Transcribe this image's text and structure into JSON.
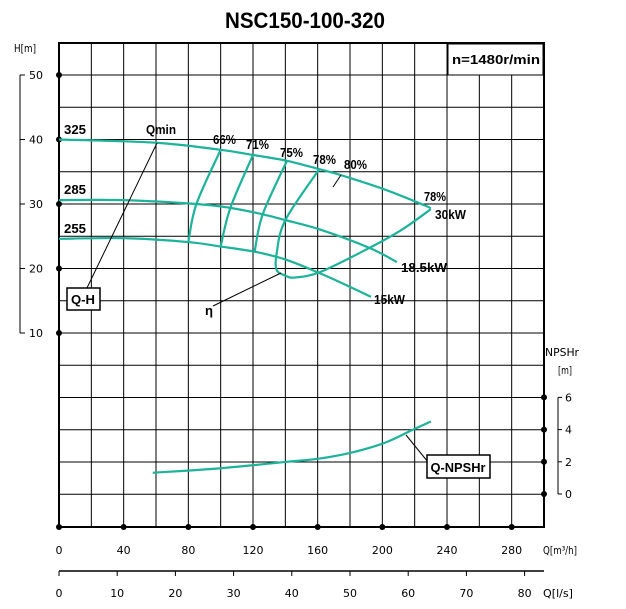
{
  "chart_data": {
    "type": "line",
    "title": "NSC150-100-320",
    "speed_label": "n=1480r/min",
    "x_axis": {
      "label": "Q[m³/h]",
      "range": [
        0,
        300
      ],
      "ticks": [
        0,
        40,
        80,
        120,
        160,
        200,
        240,
        280
      ],
      "grid_step": 20
    },
    "x2_axis": {
      "label": "Q[l/s]",
      "ticks": [
        0,
        10,
        20,
        30,
        40,
        50,
        60,
        70,
        80
      ]
    },
    "y_axis": {
      "label": "H[m]",
      "range": [
        -20,
        55
      ],
      "ticks": [
        10,
        20,
        30,
        40,
        50
      ],
      "grid_step": 5
    },
    "y2_axis": {
      "label_line1": "NPSHr",
      "label_line2": "[m]",
      "ticks": [
        0,
        2,
        4,
        6
      ]
    },
    "grid": true,
    "color": "#1db39a",
    "head_curves": [
      {
        "name": "325",
        "power_label": "30kW",
        "points": [
          [
            0,
            40
          ],
          [
            60,
            39.5
          ],
          [
            100,
            38.4
          ],
          [
            120,
            37.6
          ],
          [
            141,
            36.7
          ],
          [
            161,
            35.4
          ],
          [
            174,
            34.5
          ],
          [
            202,
            32.2
          ],
          [
            226,
            29.8
          ],
          [
            230,
            29.3
          ]
        ]
      },
      {
        "name": "285",
        "power_label": "18.5kW",
        "points": [
          [
            0,
            30.6
          ],
          [
            40,
            30.6
          ],
          [
            85,
            30
          ],
          [
            106,
            29.4
          ],
          [
            126,
            28.4
          ],
          [
            140,
            27.5
          ],
          [
            162,
            26
          ],
          [
            192,
            23.2
          ],
          [
            209,
            21
          ]
        ]
      },
      {
        "name": "255",
        "power_label": "15kW",
        "points": [
          [
            0,
            24.6
          ],
          [
            40,
            24.7
          ],
          [
            80,
            24.1
          ],
          [
            100,
            23.4
          ],
          [
            121,
            22.6
          ],
          [
            140,
            21.4
          ],
          [
            161,
            19.3
          ],
          [
            177,
            17.5
          ],
          [
            193,
            15.6
          ]
        ]
      }
    ],
    "iso_efficiency": [
      {
        "name": "66%",
        "points": [
          [
            100,
            38.4
          ],
          [
            85,
            30
          ],
          [
            80,
            24.1
          ]
        ]
      },
      {
        "name": "71%",
        "points": [
          [
            120,
            37.6
          ],
          [
            106,
            29.4
          ],
          [
            100,
            23.4
          ]
        ]
      },
      {
        "name": "75%",
        "points": [
          [
            141,
            36.7
          ],
          [
            126,
            28.4
          ],
          [
            121,
            22.6
          ]
        ]
      },
      {
        "name": "78%",
        "points": [
          [
            161,
            35.4
          ],
          [
            140,
            27.5
          ],
          [
            134.6,
            22.3
          ],
          [
            134.6,
            19.8
          ],
          [
            140,
            18.9
          ],
          [
            146,
            18.6
          ],
          [
            162,
            19.5
          ],
          [
            192,
            23.2
          ],
          [
            212,
            26
          ],
          [
            230,
            29.2
          ]
        ]
      }
    ],
    "best_efficiency_label": "80%",
    "end_efficiency_label": "78%",
    "eta_label": "η",
    "qmin_label": "Qmin",
    "qh_label": "Q-H",
    "npsh_label": "Q-NPSHr",
    "npsh_curve": {
      "name": "Q-NPSHr",
      "points": [
        [
          58,
          1.32
        ],
        [
          100,
          1.6
        ],
        [
          141,
          2
        ],
        [
          161,
          2.2
        ],
        [
          182,
          2.6
        ],
        [
          202,
          3.2
        ],
        [
          219,
          4
        ],
        [
          230,
          4.5
        ]
      ]
    }
  }
}
